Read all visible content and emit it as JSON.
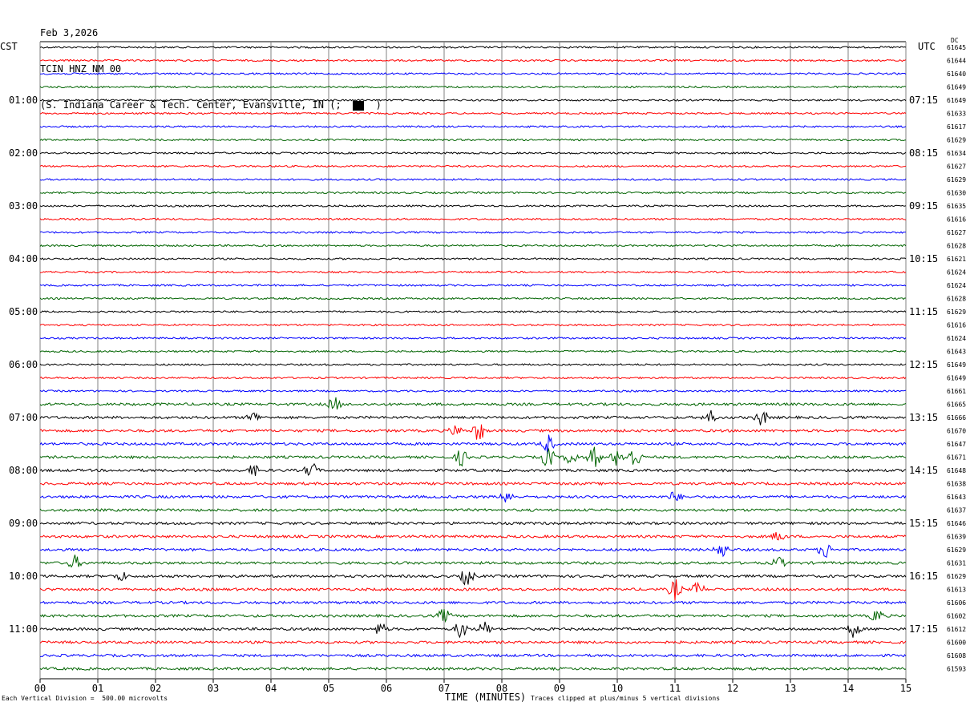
{
  "header": {
    "date": "Feb 3,2026",
    "channel": "TCIN HNZ NM 00",
    "location": "(S. Indiana Career & Tech. Center, Evansville, IN (;  ",
    "location_end": "  )"
  },
  "left_tz": "CST",
  "right_tz": "UTC",
  "dc_header": "DC",
  "footer": {
    "scale": "Each Vertical Division =  500.00 microvolts",
    "clip_note": "Traces clipped at plus/minus 5 vertical divisions"
  },
  "colors": {
    "black": "#000000",
    "red": "#ff0000",
    "blue": "#0000ff",
    "green": "#006400",
    "grid": "#808080"
  },
  "chart_data": {
    "type": "line",
    "title": "TCIN HNZ NM 00",
    "xlabel": "TIME (MINUTES)",
    "xlim": [
      0,
      15
    ],
    "x_ticks": [
      "00",
      "01",
      "02",
      "03",
      "04",
      "05",
      "06",
      "07",
      "08",
      "09",
      "10",
      "11",
      "12",
      "13",
      "14",
      "15"
    ],
    "rows_per_hour": 4,
    "minutes_per_row": 15,
    "left_hour_labels": [
      "01:00",
      "02:00",
      "03:00",
      "04:00",
      "05:00",
      "06:00",
      "07:00",
      "08:00",
      "09:00",
      "10:00",
      "11:00"
    ],
    "right_hour_labels": [
      "07:15",
      "08:15",
      "09:15",
      "10:15",
      "11:15",
      "12:15",
      "13:15",
      "14:15",
      "15:15",
      "16:15",
      "17:15"
    ],
    "trace_colors": [
      "black",
      "red",
      "blue",
      "green"
    ],
    "dc_offsets": [
      61645,
      61644,
      61640,
      61649,
      61649,
      61633,
      61617,
      61629,
      61634,
      61627,
      61629,
      61630,
      61635,
      61616,
      61627,
      61628,
      61621,
      61624,
      61624,
      61628,
      61629,
      61616,
      61624,
      61643,
      61649,
      61649,
      61661,
      61665,
      61666,
      61670,
      61647,
      61671,
      61648,
      61638,
      61643,
      61637,
      61646,
      61639,
      61629,
      61631,
      61629,
      61613,
      61606,
      61602,
      61612,
      61600,
      61608,
      61593
    ],
    "events": [
      {
        "row": 27,
        "minute": 5.1,
        "amp": 1.0
      },
      {
        "row": 28,
        "minute": 3.7,
        "amp": 0.8
      },
      {
        "row": 28,
        "minute": 11.6,
        "amp": 1.0
      },
      {
        "row": 28,
        "minute": 12.5,
        "amp": 1.2
      },
      {
        "row": 29,
        "minute": 7.2,
        "amp": 0.8
      },
      {
        "row": 29,
        "minute": 7.6,
        "amp": 1.5
      },
      {
        "row": 30,
        "minute": 8.8,
        "amp": 1.4
      },
      {
        "row": 31,
        "minute": 7.3,
        "amp": 1.2
      },
      {
        "row": 31,
        "minute": 8.8,
        "amp": 1.6
      },
      {
        "row": 31,
        "minute": 9.2,
        "amp": 1.2
      },
      {
        "row": 31,
        "minute": 9.6,
        "amp": 1.6
      },
      {
        "row": 31,
        "minute": 10.0,
        "amp": 1.2
      },
      {
        "row": 31,
        "minute": 10.3,
        "amp": 1.8
      },
      {
        "row": 32,
        "minute": 3.7,
        "amp": 0.8
      },
      {
        "row": 32,
        "minute": 4.7,
        "amp": 1.2
      },
      {
        "row": 34,
        "minute": 8.1,
        "amp": 1.0
      },
      {
        "row": 34,
        "minute": 11.0,
        "amp": 0.8
      },
      {
        "row": 37,
        "minute": 12.8,
        "amp": 0.8
      },
      {
        "row": 38,
        "minute": 11.8,
        "amp": 1.2
      },
      {
        "row": 38,
        "minute": 13.6,
        "amp": 1.2
      },
      {
        "row": 39,
        "minute": 0.6,
        "amp": 1.0
      },
      {
        "row": 39,
        "minute": 12.8,
        "amp": 0.8
      },
      {
        "row": 40,
        "minute": 7.4,
        "amp": 1.4
      },
      {
        "row": 40,
        "minute": 1.4,
        "amp": 0.7
      },
      {
        "row": 41,
        "minute": 11.0,
        "amp": 1.5
      },
      {
        "row": 41,
        "minute": 11.4,
        "amp": 1.0
      },
      {
        "row": 43,
        "minute": 7.0,
        "amp": 1.0
      },
      {
        "row": 43,
        "minute": 14.5,
        "amp": 1.0
      },
      {
        "row": 44,
        "minute": 5.9,
        "amp": 1.0
      },
      {
        "row": 44,
        "minute": 7.3,
        "amp": 1.4
      },
      {
        "row": 44,
        "minute": 7.7,
        "amp": 1.0
      },
      {
        "row": 44,
        "minute": 14.1,
        "amp": 1.2
      }
    ]
  }
}
